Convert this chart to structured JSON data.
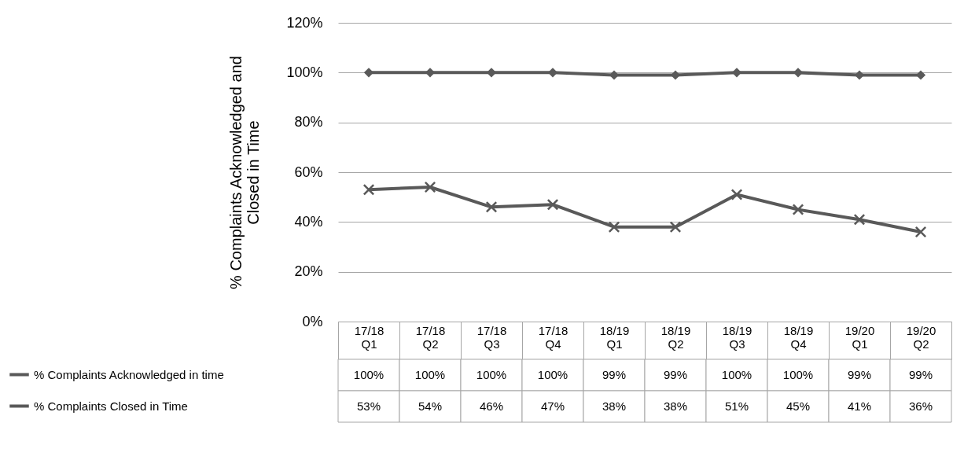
{
  "chart_data": {
    "type": "line",
    "ylabel": "% Complaints Acknowledged and Closed in Time",
    "categories": [
      "17/18 Q1",
      "17/18 Q2",
      "17/18 Q3",
      "17/18 Q4",
      "18/19 Q1",
      "18/19 Q2",
      "18/19 Q3",
      "18/19 Q4",
      "19/20 Q1",
      "19/20 Q2"
    ],
    "series": [
      {
        "name": "% Complaints Acknowledged in time",
        "color": "#595959",
        "marker": "diamond",
        "values": [
          100,
          100,
          100,
          100,
          99,
          99,
          100,
          100,
          99,
          99
        ],
        "value_labels": [
          "100%",
          "100%",
          "100%",
          "100%",
          "99%",
          "99%",
          "100%",
          "100%",
          "99%",
          "99%"
        ]
      },
      {
        "name": "%  Complaints Closed in Time",
        "color": "#595959",
        "marker": "cross",
        "values": [
          53,
          54,
          46,
          47,
          38,
          38,
          51,
          45,
          41,
          36
        ],
        "value_labels": [
          "53%",
          "54%",
          "46%",
          "47%",
          "38%",
          "38%",
          "51%",
          "45%",
          "41%",
          "36%"
        ]
      }
    ],
    "ylim": [
      0,
      120
    ],
    "yticks": [
      {
        "value": 0,
        "label": "0%"
      },
      {
        "value": 20,
        "label": "20%"
      },
      {
        "value": 40,
        "label": "40%"
      },
      {
        "value": 60,
        "label": "60%"
      },
      {
        "value": 80,
        "label": "80%"
      },
      {
        "value": 100,
        "label": "100%"
      },
      {
        "value": 120,
        "label": "120%"
      }
    ],
    "grid": "y",
    "legend": "bottom left",
    "line_style": "solid"
  }
}
